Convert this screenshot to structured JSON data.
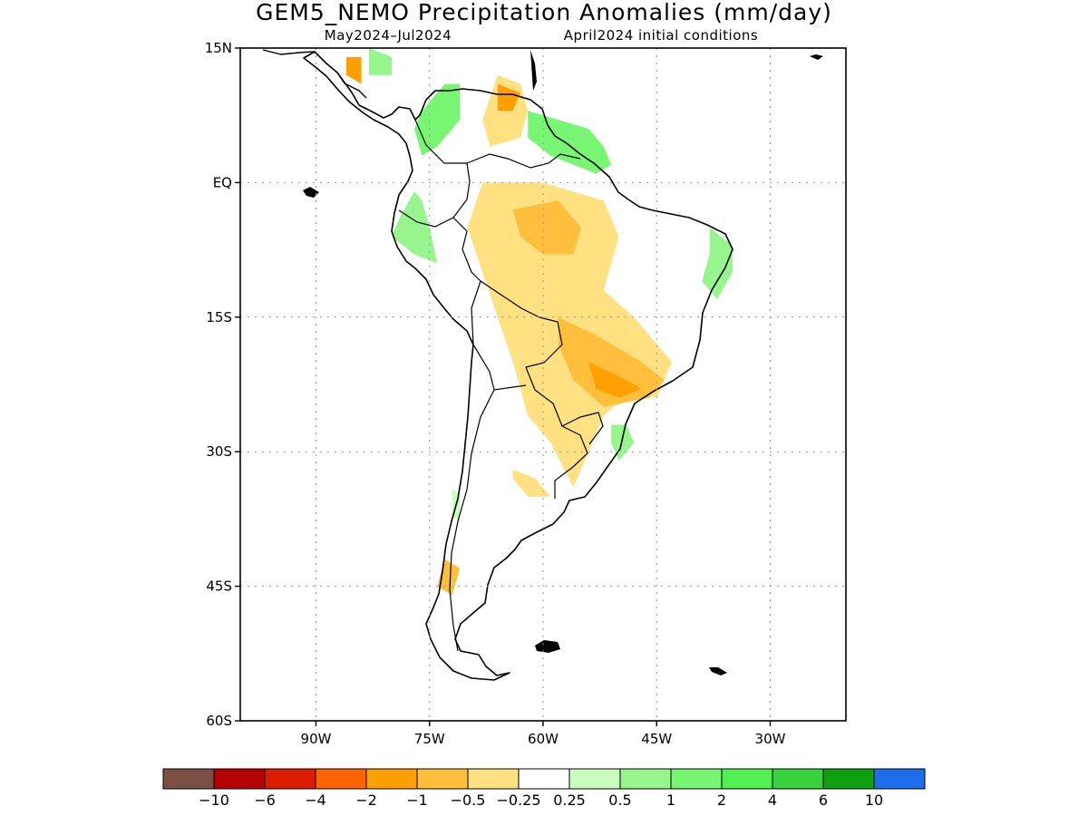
{
  "title": "GEM5_NEMO Precipitation Anomalies (mm/day)",
  "subtitle_left": "May2024–Jul2024",
  "subtitle_right": "April2024 initial conditions",
  "map": {
    "lon_range": [
      -100,
      -20
    ],
    "lat_range": [
      -60,
      15
    ],
    "lat_ticks": [
      {
        "value": 15,
        "label": "15N"
      },
      {
        "value": 0,
        "label": "EQ"
      },
      {
        "value": -15,
        "label": "15S"
      },
      {
        "value": -30,
        "label": "30S"
      },
      {
        "value": -45,
        "label": "45S"
      },
      {
        "value": -60,
        "label": "60S"
      }
    ],
    "lon_ticks": [
      {
        "value": -90,
        "label": "90W"
      },
      {
        "value": -75,
        "label": "75W"
      },
      {
        "value": -60,
        "label": "60W"
      },
      {
        "value": -45,
        "label": "45W"
      },
      {
        "value": -30,
        "label": "30W"
      }
    ],
    "grid": "dotted",
    "coastline_color": "#000000",
    "frame_color": "#000000"
  },
  "colorbar": {
    "colors": [
      "#7a5044",
      "#b40000",
      "#dc1e00",
      "#ff6400",
      "#ffa000",
      "#ffbe3c",
      "#ffe182",
      "#ffffff",
      "#c8ffbe",
      "#96f58c",
      "#78f573",
      "#50f050",
      "#37d23c",
      "#0fa00f",
      "#1e6eeb"
    ],
    "labels": [
      "−10",
      "−6",
      "−4",
      "−2",
      "−1",
      "−0.5",
      "−0.25",
      "0.25",
      "0.5",
      "1",
      "2",
      "4",
      "6",
      "10"
    ]
  },
  "anomaly_regions": [
    {
      "category": "2",
      "color": "#78f573",
      "points": [
        [
          -76,
          8
        ],
        [
          -73,
          11
        ],
        [
          -71,
          11
        ],
        [
          -71,
          7
        ],
        [
          -74,
          4
        ],
        [
          -76,
          3
        ],
        [
          -77,
          6
        ]
      ]
    },
    {
      "category": "2",
      "color": "#78f573",
      "points": [
        [
          -62,
          8
        ],
        [
          -58,
          7
        ],
        [
          -54,
          6
        ],
        [
          -52,
          4
        ],
        [
          -51,
          2
        ],
        [
          -53,
          1
        ],
        [
          -56,
          2
        ],
        [
          -59,
          3
        ],
        [
          -62,
          5
        ]
      ]
    },
    {
      "category": "1",
      "color": "#96f58c",
      "points": [
        [
          -77,
          -1
        ],
        [
          -79,
          -4
        ],
        [
          -80,
          -6
        ],
        [
          -77,
          -8
        ],
        [
          -74,
          -9
        ],
        [
          -75,
          -5
        ],
        [
          -76,
          -2
        ]
      ]
    },
    {
      "category": "1",
      "color": "#96f58c",
      "points": [
        [
          -38,
          -5
        ],
        [
          -35,
          -7
        ],
        [
          -35,
          -10
        ],
        [
          -37,
          -13
        ],
        [
          -39,
          -11
        ],
        [
          -38,
          -8
        ]
      ]
    },
    {
      "category": "1",
      "color": "#96f58c",
      "points": [
        [
          -51,
          -27
        ],
        [
          -49,
          -27
        ],
        [
          -48,
          -29
        ],
        [
          -50,
          -31
        ],
        [
          -51,
          -29
        ]
      ]
    },
    {
      "category": "1",
      "color": "#96f58c",
      "points": [
        [
          -83,
          15
        ],
        [
          -80,
          14
        ],
        [
          -80,
          12
        ],
        [
          -83,
          12
        ]
      ]
    },
    {
      "category": "0.5",
      "color": "#c8ffbe",
      "points": [
        [
          -72,
          -34
        ],
        [
          -71,
          -35
        ],
        [
          -71,
          -38
        ],
        [
          -72,
          -37
        ]
      ]
    },
    {
      "category": "-0.25",
      "color": "#ffe182",
      "points": [
        [
          -68,
          0
        ],
        [
          -60,
          0
        ],
        [
          -52,
          -2
        ],
        [
          -50,
          -6
        ],
        [
          -52,
          -12
        ],
        [
          -48,
          -15
        ],
        [
          -43,
          -20
        ],
        [
          -45,
          -24
        ],
        [
          -48,
          -23
        ],
        [
          -52,
          -26
        ],
        [
          -54,
          -30
        ],
        [
          -56,
          -34
        ],
        [
          -59,
          -29
        ],
        [
          -62,
          -26
        ],
        [
          -64,
          -20
        ],
        [
          -66,
          -15
        ],
        [
          -68,
          -10
        ],
        [
          -70,
          -5
        ]
      ]
    },
    {
      "category": "-0.25",
      "color": "#ffe182",
      "points": [
        [
          -66,
          12
        ],
        [
          -63,
          11
        ],
        [
          -62,
          8
        ],
        [
          -63,
          5
        ],
        [
          -67,
          4
        ],
        [
          -68,
          7
        ]
      ]
    },
    {
      "category": "-0.25",
      "color": "#ffe182",
      "points": [
        [
          -64,
          -32
        ],
        [
          -61,
          -33
        ],
        [
          -59,
          -35
        ],
        [
          -62,
          -35
        ],
        [
          -64,
          -33
        ]
      ]
    },
    {
      "category": "-0.5",
      "color": "#ffbe3c",
      "points": [
        [
          -64,
          -3
        ],
        [
          -58,
          -2
        ],
        [
          -55,
          -5
        ],
        [
          -56,
          -8
        ],
        [
          -60,
          -8
        ],
        [
          -63,
          -6
        ]
      ]
    },
    {
      "category": "-0.5",
      "color": "#ffbe3c",
      "points": [
        [
          -58,
          -15
        ],
        [
          -53,
          -17
        ],
        [
          -47,
          -20
        ],
        [
          -44,
          -22
        ],
        [
          -46,
          -24
        ],
        [
          -52,
          -25
        ],
        [
          -56,
          -22
        ],
        [
          -58,
          -18
        ]
      ]
    },
    {
      "category": "-0.5",
      "color": "#ffbe3c",
      "points": [
        [
          -73,
          -42
        ],
        [
          -71,
          -43
        ],
        [
          -72,
          -46
        ],
        [
          -74,
          -45
        ]
      ]
    },
    {
      "category": "-1",
      "color": "#ffa000",
      "points": [
        [
          -66,
          11
        ],
        [
          -63,
          10
        ],
        [
          -64,
          8
        ],
        [
          -66,
          8
        ]
      ]
    },
    {
      "category": "-1",
      "color": "#ffa000",
      "points": [
        [
          -86,
          14
        ],
        [
          -84,
          14
        ],
        [
          -84,
          11
        ],
        [
          -86,
          12
        ]
      ]
    },
    {
      "category": "-1",
      "color": "#ffa000",
      "points": [
        [
          -54,
          -20
        ],
        [
          -49,
          -22
        ],
        [
          -47,
          -23
        ],
        [
          -50,
          -24
        ],
        [
          -53,
          -23
        ]
      ]
    }
  ]
}
